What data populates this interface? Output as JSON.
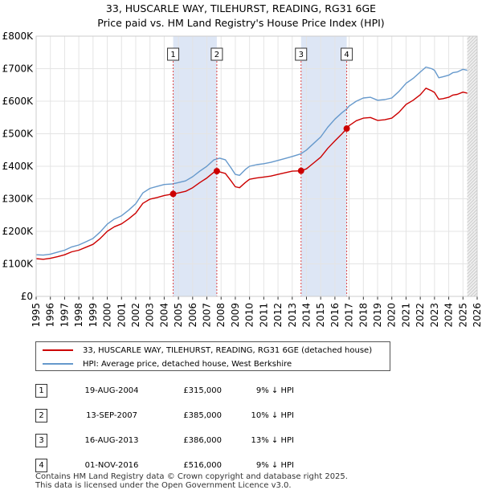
{
  "header": {
    "title_line1": "33, HUSCARLE WAY, TILEHURST, READING, RG31 6GE",
    "title_line2": "Price paid vs. HM Land Registry's House Price Index (HPI)"
  },
  "chart_data": {
    "type": "line",
    "title": "Price paid vs. HM Land Registry's House Price Index (HPI)",
    "xlabel": "",
    "ylabel": "",
    "xlim": [
      1995,
      2026
    ],
    "ylim": [
      0,
      800000
    ],
    "y_ticks": [
      0,
      100000,
      200000,
      300000,
      400000,
      500000,
      600000,
      700000,
      800000
    ],
    "y_tick_labels": [
      "£0",
      "£100K",
      "£200K",
      "£300K",
      "£400K",
      "£500K",
      "£600K",
      "£700K",
      "£800K"
    ],
    "x_ticks": [
      1995,
      1996,
      1997,
      1998,
      1999,
      2000,
      2001,
      2002,
      2003,
      2004,
      2005,
      2006,
      2007,
      2008,
      2009,
      2010,
      2011,
      2012,
      2013,
      2014,
      2015,
      2016,
      2017,
      2018,
      2019,
      2020,
      2021,
      2022,
      2023,
      2024,
      2025,
      2026
    ],
    "x_tick_labels": [
      "1995",
      "1996",
      "1997",
      "1998",
      "1999",
      "2000",
      "2001",
      "2002",
      "2003",
      "2004",
      "2005",
      "2006",
      "2007",
      "2008",
      "2009",
      "2010",
      "2011",
      "2012",
      "2013",
      "2014",
      "2015",
      "2016",
      "2017",
      "2018",
      "2019",
      "2020",
      "2021",
      "2022",
      "2023",
      "2024",
      "2025",
      "2026"
    ],
    "grid": true,
    "series": [
      {
        "name": "HPI: Average price, detached house, West Berkshire",
        "color": "#6699cc",
        "x": [
          1995.0,
          1995.5,
          1996.0,
          1996.5,
          1997.0,
          1997.5,
          1998.0,
          1998.5,
          1999.0,
          1999.5,
          2000.0,
          2000.5,
          2001.0,
          2001.5,
          2002.0,
          2002.5,
          2003.0,
          2003.5,
          2004.0,
          2004.6,
          2005.0,
          2005.5,
          2006.0,
          2006.5,
          2007.0,
          2007.5,
          2007.9,
          2008.3,
          2008.7,
          2009.0,
          2009.3,
          2009.7,
          2010.0,
          2010.5,
          2011.0,
          2011.5,
          2012.0,
          2012.5,
          2013.0,
          2013.6,
          2014.0,
          2014.5,
          2015.0,
          2015.5,
          2016.0,
          2016.5,
          2016.8,
          2017.0,
          2017.5,
          2018.0,
          2018.5,
          2019.0,
          2019.5,
          2020.0,
          2020.5,
          2021.0,
          2021.5,
          2022.0,
          2022.4,
          2022.8,
          2023.0,
          2023.3,
          2023.6,
          2024.0,
          2024.3,
          2024.6,
          2025.0,
          2025.3
        ],
        "values": [
          128000,
          127000,
          130000,
          136000,
          142000,
          152000,
          158000,
          168000,
          178000,
          198000,
          222000,
          238000,
          248000,
          265000,
          285000,
          318000,
          332000,
          338000,
          344000,
          346000,
          350000,
          355000,
          368000,
          385000,
          400000,
          420000,
          425000,
          420000,
          395000,
          375000,
          372000,
          390000,
          400000,
          405000,
          408000,
          412000,
          418000,
          424000,
          430000,
          438000,
          450000,
          470000,
          490000,
          520000,
          545000,
          565000,
          575000,
          585000,
          600000,
          610000,
          612000,
          603000,
          605000,
          610000,
          630000,
          655000,
          670000,
          690000,
          705000,
          700000,
          695000,
          672000,
          675000,
          680000,
          688000,
          690000,
          698000,
          695000
        ]
      },
      {
        "name": "33, HUSCARLE WAY, TILEHURST, READING, RG31 6GE (detached house)",
        "color": "#cc0000",
        "x": [
          1995.0,
          1995.5,
          1996.0,
          1996.5,
          1997.0,
          1997.5,
          1998.0,
          1998.5,
          1999.0,
          1999.5,
          2000.0,
          2000.5,
          2001.0,
          2001.5,
          2002.0,
          2002.5,
          2003.0,
          2003.5,
          2004.0,
          2004.63,
          2005.0,
          2005.5,
          2006.0,
          2006.5,
          2007.0,
          2007.5,
          2007.7,
          2008.3,
          2008.7,
          2009.0,
          2009.3,
          2009.7,
          2010.0,
          2010.5,
          2011.0,
          2011.5,
          2012.0,
          2012.5,
          2013.0,
          2013.62,
          2014.0,
          2014.5,
          2015.0,
          2015.5,
          2016.0,
          2016.5,
          2016.83,
          2017.0,
          2017.5,
          2018.0,
          2018.5,
          2019.0,
          2019.5,
          2020.0,
          2020.5,
          2021.0,
          2021.5,
          2022.0,
          2022.4,
          2022.8,
          2023.0,
          2023.3,
          2023.6,
          2024.0,
          2024.3,
          2024.6,
          2025.0,
          2025.3
        ],
        "values": [
          116000,
          114000,
          117000,
          122000,
          128000,
          137000,
          142000,
          151000,
          160000,
          178000,
          200000,
          214000,
          223000,
          238000,
          256000,
          286000,
          299000,
          304000,
          310000,
          315000,
          318000,
          323000,
          334000,
          350000,
          364000,
          382000,
          385000,
          378000,
          355000,
          337000,
          334000,
          350000,
          360000,
          364000,
          367000,
          370000,
          375000,
          380000,
          385000,
          386000,
          392000,
          410000,
          428000,
          455000,
          478000,
          500000,
          516000,
          525000,
          540000,
          548000,
          550000,
          541000,
          543000,
          548000,
          566000,
          590000,
          603000,
          620000,
          640000,
          632000,
          627000,
          606000,
          608000,
          612000,
          619000,
          621000,
          628000,
          625000
        ]
      }
    ],
    "sales_markers": [
      {
        "id": "1",
        "x": 2004.63,
        "value": 315000
      },
      {
        "id": "2",
        "x": 2007.7,
        "value": 385000
      },
      {
        "id": "3",
        "x": 2013.62,
        "value": 386000
      },
      {
        "id": "4",
        "x": 2016.83,
        "value": 516000
      }
    ],
    "shaded_periods": [
      [
        2004.63,
        2007.7
      ],
      [
        2013.62,
        2016.83
      ]
    ],
    "forecast_from": 2025.3
  },
  "legend": {
    "property_label": "33, HUSCARLE WAY, TILEHURST, READING, RG31 6GE (detached house)",
    "hpi_label": "HPI: Average price, detached house, West Berkshire"
  },
  "sales": [
    {
      "num": "1",
      "date": "19-AUG-2004",
      "price": "£315,000",
      "hpi": "9% ↓ HPI"
    },
    {
      "num": "2",
      "date": "13-SEP-2007",
      "price": "£385,000",
      "hpi": "10% ↓ HPI"
    },
    {
      "num": "3",
      "date": "16-AUG-2013",
      "price": "£386,000",
      "hpi": "13% ↓ HPI"
    },
    {
      "num": "4",
      "date": "01-NOV-2016",
      "price": "£516,000",
      "hpi": "9% ↓ HPI"
    }
  ],
  "footer": {
    "line1": "Contains HM Land Registry data © Crown copyright and database right 2025.",
    "line2": "This data is licensed under the Open Government Licence v3.0."
  }
}
